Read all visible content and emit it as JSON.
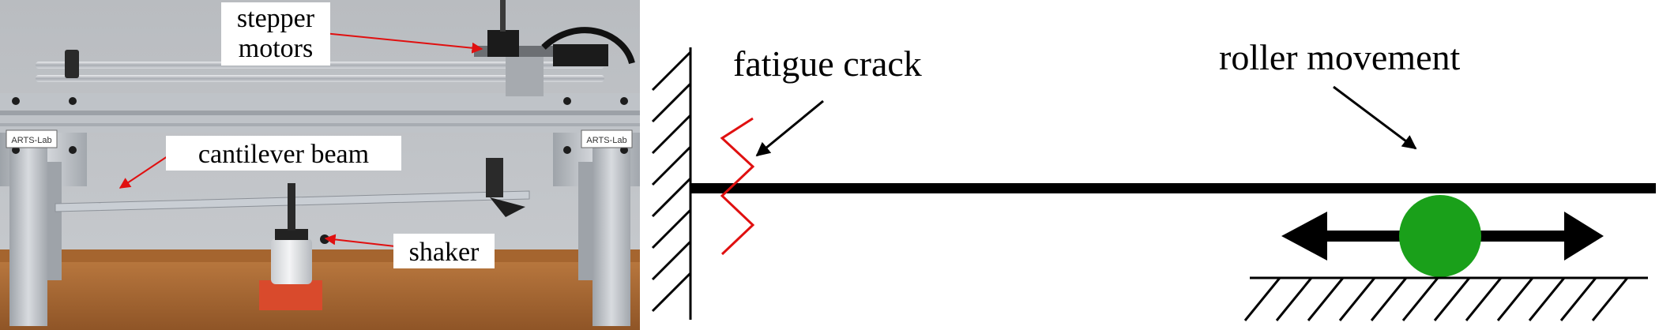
{
  "photo_panel": {
    "labels": {
      "stepper_line1": "stepper",
      "stepper_line2": "motors",
      "cantilever": "cantilever beam",
      "shaker": "shaker"
    },
    "logo_text": "ARTS-Lab",
    "colors": {
      "annotation_arrow": "#e01010",
      "label_box": "#ffffff"
    }
  },
  "schematic_panel": {
    "labels": {
      "crack": "fatigue crack",
      "roller": "roller movement"
    },
    "colors": {
      "beam": "#000000",
      "crack": "#e01010",
      "roller": "#1aa01a",
      "arrows": "#000000"
    }
  }
}
